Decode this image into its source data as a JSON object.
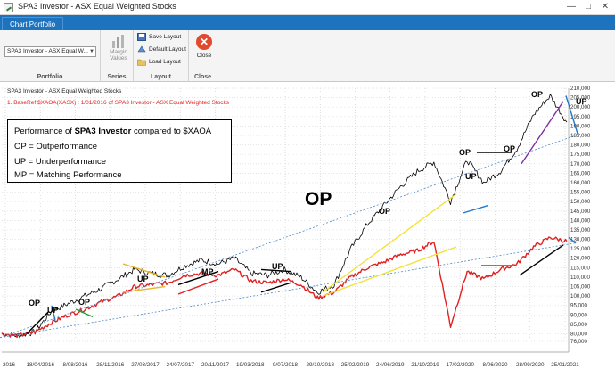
{
  "window": {
    "title": "SPA3 Investor - ASX Equal Weighted Stocks"
  },
  "ribbon": {
    "tab": "Chart Portfolio",
    "portfolio_select": "SPA3 Investor - ASX Equal W...",
    "groups": {
      "portfolio": "Portfolio",
      "series": "Series",
      "layout": "Layout",
      "close": "Close"
    },
    "margin_values": [
      "Margin",
      "Values"
    ],
    "save_layout": "Save Layout",
    "default_layout": "Default Layout",
    "load_layout": "Load Layout",
    "close_label": "Close"
  },
  "legend": {
    "series1": "SPA3 Investor - ASX Equal Weighted Stocks",
    "series2": "1. BaseRef $XAOA(XASX) : 1/01/2016 of SPA3 Investor - ASX Equal Weighted Stocks"
  },
  "info": {
    "line1_prefix": "Performance of ",
    "line1_bold": "SPA3 Investor",
    "line1_suffix": " compared to $XAOA",
    "line2": "OP = Outperformance",
    "line3": "UP = Underperformance",
    "line4": "MP = Matching Performance"
  },
  "annotations": {
    "big": "OP",
    "labels": [
      "OP",
      "UP",
      "OP",
      "UP",
      "MP",
      "UP",
      "OP",
      "OP",
      "UP",
      "OP",
      "OP",
      "UP"
    ]
  },
  "colors": {
    "portfolio": "#000000",
    "benchmark": "#e02020",
    "accent": "#1e73be",
    "close": "#e14a2c"
  },
  "chart_data": {
    "type": "line",
    "y_ticks": [
      210000,
      205000,
      200000,
      195000,
      190000,
      185000,
      180000,
      175000,
      170000,
      165000,
      160000,
      155000,
      150000,
      145000,
      140000,
      135000,
      130000,
      125000,
      120000,
      115000,
      110000,
      105000,
      100000,
      95000,
      90000,
      85000,
      80000,
      76000
    ],
    "x_ticks": [
      "2016",
      "18/04/2016",
      "8/08/2016",
      "28/11/2016",
      "27/03/2017",
      "24/07/2017",
      "20/11/2017",
      "19/03/2018",
      "9/07/2018",
      "29/10/2018",
      "25/02/2019",
      "24/06/2019",
      "21/10/2019",
      "17/02/2020",
      "8/06/2020",
      "28/09/2020",
      "25/01/2021"
    ],
    "ylim": [
      76000,
      210000
    ],
    "series": [
      {
        "name": "SPA3 Investor - ASX Equal Weighted Stocks",
        "values": [
          80000,
          79000,
          81000,
          92000,
          96000,
          100000,
          104000,
          109000,
          114000,
          112000,
          111000,
          116000,
          119000,
          117000,
          120000,
          112000,
          111000,
          114000,
          110000,
          102000,
          106000,
          125000,
          138000,
          148000,
          158000,
          166000,
          171000,
          150000,
          172000,
          160000,
          166000,
          178000,
          196000,
          206000,
          192000
        ]
      },
      {
        "name": "1. BaseRef $XAOA(XASX) : 1/01/2016 of SPA3 Investor - ASX Equal Weighted Stocks",
        "values": [
          80000,
          79000,
          81000,
          86000,
          90000,
          93000,
          97000,
          100000,
          105000,
          106000,
          107000,
          111000,
          112000,
          111000,
          114000,
          108000,
          107000,
          109000,
          106000,
          99000,
          102000,
          110000,
          115000,
          118000,
          122000,
          124000,
          129000,
          84000,
          113000,
          109000,
          114000,
          117000,
          126000,
          131000,
          129000
        ]
      }
    ]
  }
}
